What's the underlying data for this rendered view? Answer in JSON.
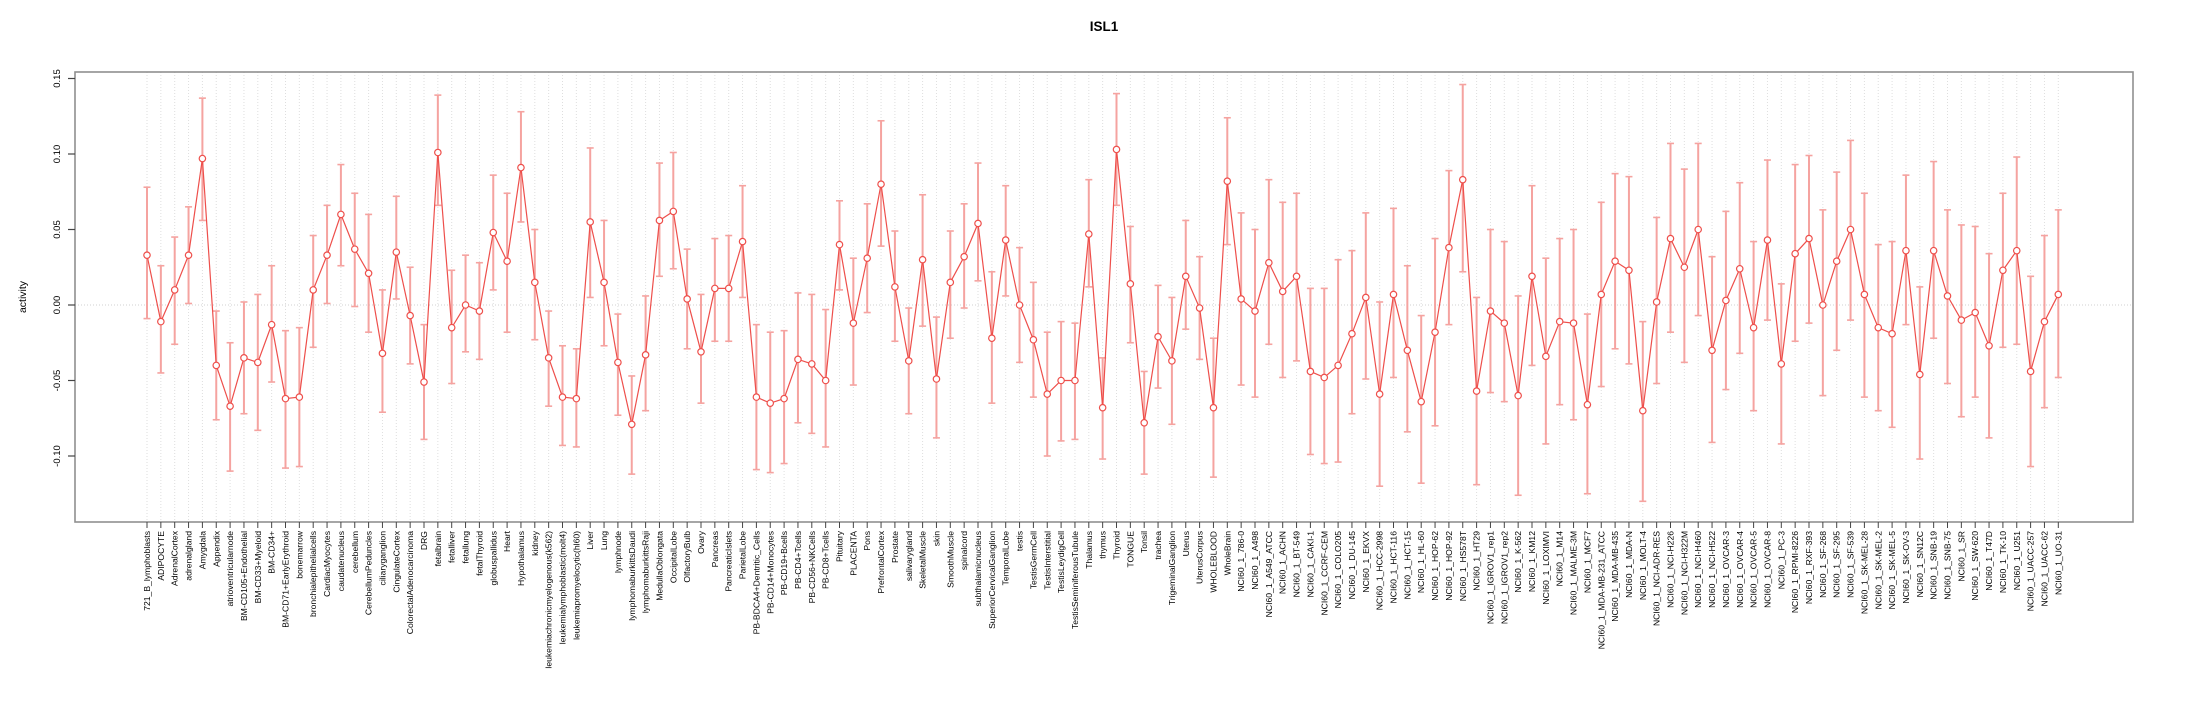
{
  "chart_data": {
    "type": "line",
    "title": "ISL1",
    "ylabel": "activity",
    "xlabel": "",
    "ylim": [
      -0.13,
      0.155
    ],
    "yticks": [
      "0.15",
      "0.10",
      "0.05",
      "0.00",
      "-0.05",
      "-0.10"
    ],
    "ytick_values": [
      0.15,
      0.1,
      0.05,
      0.0,
      -0.05,
      -0.1
    ],
    "grid": "vertical dotted gridline at every category; horizontal dotted line at y=0",
    "legend_position": "none",
    "marker": "open-circle",
    "error_bars": true,
    "colors": {
      "series": "#ee4f4b",
      "error_bar": "#f5a3a0",
      "grid": "#dedede",
      "zero_line": "#d0d0d0",
      "box": "#8f8f8f",
      "tick": "#444444",
      "text": "#000000",
      "background": "#ffffff"
    },
    "categories": [
      "721_B_lymphoblasts",
      "ADIPOCYTE",
      "AdrenalCortex",
      "adrenalgland",
      "Amygdala",
      "Appendix",
      "atrioventricularnode",
      "BM-CD105+Endothelial",
      "BM-CD33+Myeloid",
      "BM-CD34+",
      "BM-CD71+EarlyErythroid",
      "bonemarrow",
      "bronchialepithelialcells",
      "CardiacMyocytes",
      "caudatenucleus",
      "cerebellum",
      "CerebellumPeduncles",
      "ciliaryganglion",
      "CingulateCortex",
      "ColorectalAdenocarcinoma",
      "DRG",
      "fetalbrain",
      "fetalliver",
      "fetallung",
      "fetalThyroid",
      "globuspallidus",
      "Heart",
      "Hypothalamus",
      "kidney",
      "leukemiachronicmyelogenous(k562)",
      "leukemialymphoblastic(molt4)",
      "leukemiapromyelocytic(hl60)",
      "Liver",
      "Lung",
      "lymphnode",
      "lymphomaburkittsDaudi",
      "lymphomaburkittsRaji",
      "MedullaOblongata",
      "OccipitalLobe",
      "OlfactoryBulb",
      "Ovary",
      "Pancreas",
      "PancreaticIslets",
      "ParietalLobe",
      "PB-BDCA4+Dentritic_Cells",
      "PB-CD14+Monocytes",
      "PB-CD19+Bcells",
      "PB-CD4+Tcells",
      "PB-CD56+NKCells",
      "PB-CD8+Tcells",
      "Pituitary",
      "PLACENTA",
      "Pons",
      "PrefrontalCortex",
      "Prostate",
      "salivarygland",
      "SkeletalMuscle",
      "skin",
      "SmoothMuscle",
      "spinalcord",
      "subthalamicnucleus",
      "SuperiorCervicalGanglion",
      "TemporalLobe",
      "testis",
      "TestisGermCell",
      "TestisInterstitial",
      "TestisLeydigCell",
      "TestisSeminiferousTubule",
      "Thalamus",
      "thymus",
      "Thyroid",
      "TONGUE",
      "Tonsil",
      "trachea",
      "TrigeminalGanglion",
      "Uterus",
      "UterusCorpus",
      "WHOLEBLOOD",
      "WholeBrain",
      "NCI60_1_786-0",
      "NCI60_1_A498",
      "NCI60_1_A549_ATCC",
      "NCI60_1_ACHN",
      "NCI60_1_BT-549",
      "NCI60_1_CAKI-1",
      "NCI60_1_CCRF-CEM",
      "NCI60_1_COLO205",
      "NCI60_1_DU-145",
      "NCI60_1_EKVX",
      "NCI60_1_HCC-2998",
      "NCI60_1_HCT-116",
      "NCI60_1_HCT-15",
      "NCI60_1_HL-60",
      "NCI60_1_HOP-62",
      "NCI60_1_HOP-92",
      "NCI60_1_HS578T",
      "NCI60_1_HT29",
      "NCI60_1_IGROV1_rep1",
      "NCI60_1_IGROV1_rep2",
      "NCI60_1_K-562",
      "NCI60_1_KM12",
      "NCI60_1_LOXIMVI",
      "NCI60_1_M14",
      "NCI60_1_MALME-3M",
      "NCI60_1_MCF7",
      "NCI60_1_MDA-MB-231_ATCC",
      "NCI60_1_MDA-MB-435",
      "NCI60_1_MDA-N",
      "NCI60_1_MOLT-4",
      "NCI60_1_NCI-ADR-RES",
      "NCI60_1_NCI-H226",
      "NCI60_1_NCI-H322M",
      "NCI60_1_NCI-H460",
      "NCI60_1_NCI-H522",
      "NCI60_1_OVCAR-3",
      "NCI60_1_OVCAR-4",
      "NCI60_1_OVCAR-5",
      "NCI60_1_OVCAR-8",
      "NCI60_1_PC-3",
      "NCI60_1_RPMI-8226",
      "NCI60_1_RXF-393",
      "NCI60_1_SF-268",
      "NCI60_1_SF-295",
      "NCI60_1_SF-539",
      "NCI60_1_SK-MEL-28",
      "NCI60_1_SK-MEL-2",
      "NCI60_1_SK-MEL-5",
      "NCI60_1_SK-OV-3",
      "NCI60_1_SN12C",
      "NCI60_1_SNB-19",
      "NCI60_1_SNB-75",
      "NCI60_1_SR",
      "NCI60_1_SW-620",
      "NCI60_1_T47D",
      "NCI60_1_TK-10",
      "NCI60_1_U251",
      "NCI60_1_UACC-257",
      "NCI60_1_UACC-62",
      "NCI60_1_UO-31"
    ],
    "series": [
      {
        "name": "activity",
        "values": [
          0.033,
          -0.011,
          0.01,
          0.033,
          0.097,
          -0.04,
          -0.067,
          -0.035,
          -0.038,
          -0.013,
          -0.062,
          -0.061,
          0.01,
          0.033,
          0.06,
          0.037,
          0.021,
          -0.032,
          0.035,
          -0.007,
          -0.051,
          0.101,
          -0.015,
          0.0,
          -0.004,
          0.048,
          0.029,
          0.091,
          0.015,
          -0.035,
          -0.061,
          -0.062,
          0.055,
          0.015,
          -0.038,
          -0.079,
          -0.033,
          0.056,
          0.062,
          0.004,
          -0.031,
          0.011,
          0.011,
          0.042,
          -0.061,
          -0.065,
          -0.062,
          -0.036,
          -0.039,
          -0.05,
          0.04,
          -0.012,
          0.031,
          0.08,
          0.012,
          -0.037,
          0.03,
          -0.049,
          0.015,
          0.032,
          0.054,
          -0.022,
          0.043,
          0.0,
          -0.023,
          -0.059,
          -0.05,
          -0.05,
          0.047,
          -0.068,
          0.103,
          0.014,
          -0.078,
          -0.021,
          -0.037,
          0.019,
          -0.002,
          -0.068,
          0.082,
          0.004,
          -0.004,
          0.028,
          0.009,
          0.019,
          -0.044,
          -0.048,
          -0.04,
          -0.019,
          0.005,
          -0.059,
          0.007,
          -0.03,
          -0.064,
          -0.018,
          0.038,
          0.083,
          -0.057,
          -0.004,
          -0.012,
          -0.06,
          0.019,
          -0.034,
          -0.011,
          -0.012,
          -0.066,
          0.007,
          0.029,
          0.023,
          -0.07,
          0.002,
          0.044,
          0.025,
          0.05,
          -0.03,
          0.003,
          0.024,
          -0.015,
          0.043,
          -0.039,
          0.034,
          0.044,
          0.0,
          0.029,
          0.05,
          0.007,
          -0.015,
          -0.019,
          0.036,
          -0.046,
          0.036,
          0.006,
          -0.01,
          -0.005,
          -0.027,
          0.023,
          0.036,
          -0.044,
          -0.011,
          0.007
        ],
        "err_lo": [
          -0.009,
          -0.045,
          -0.026,
          0.001,
          0.056,
          -0.076,
          -0.11,
          -0.072,
          -0.083,
          -0.051,
          -0.108,
          -0.107,
          -0.028,
          0.001,
          0.026,
          -0.001,
          -0.018,
          -0.071,
          0.004,
          -0.039,
          -0.089,
          0.066,
          -0.052,
          -0.031,
          -0.036,
          0.01,
          -0.018,
          0.055,
          -0.023,
          -0.067,
          -0.093,
          -0.094,
          0.005,
          -0.027,
          -0.073,
          -0.112,
          -0.07,
          0.019,
          0.024,
          -0.029,
          -0.065,
          -0.024,
          -0.024,
          0.005,
          -0.109,
          -0.111,
          -0.105,
          -0.078,
          -0.085,
          -0.094,
          0.01,
          -0.053,
          -0.005,
          0.039,
          -0.024,
          -0.072,
          -0.014,
          -0.088,
          -0.022,
          -0.002,
          0.016,
          -0.065,
          0.006,
          -0.038,
          -0.061,
          -0.1,
          -0.09,
          -0.089,
          0.012,
          -0.102,
          0.066,
          -0.025,
          -0.112,
          -0.055,
          -0.079,
          -0.016,
          -0.036,
          -0.114,
          0.04,
          -0.053,
          -0.061,
          -0.026,
          -0.048,
          -0.037,
          -0.099,
          -0.105,
          -0.104,
          -0.072,
          -0.049,
          -0.12,
          -0.048,
          -0.084,
          -0.118,
          -0.08,
          -0.013,
          0.022,
          -0.119,
          -0.058,
          -0.064,
          -0.126,
          -0.04,
          -0.092,
          -0.066,
          -0.076,
          -0.125,
          -0.054,
          -0.029,
          -0.039,
          -0.13,
          -0.052,
          -0.018,
          -0.038,
          -0.007,
          -0.091,
          -0.056,
          -0.032,
          -0.07,
          -0.01,
          -0.092,
          -0.024,
          -0.012,
          -0.06,
          -0.03,
          -0.01,
          -0.061,
          -0.07,
          -0.081,
          -0.013,
          -0.102,
          -0.022,
          -0.052,
          -0.074,
          -0.061,
          -0.088,
          -0.028,
          -0.026,
          -0.107,
          -0.068,
          -0.048
        ],
        "err_hi": [
          0.078,
          0.026,
          0.045,
          0.065,
          0.137,
          -0.004,
          -0.025,
          0.002,
          0.007,
          0.026,
          -0.017,
          -0.015,
          0.046,
          0.066,
          0.093,
          0.074,
          0.06,
          0.01,
          0.072,
          0.025,
          -0.013,
          0.139,
          0.023,
          0.033,
          0.028,
          0.086,
          0.074,
          0.128,
          0.05,
          -0.004,
          -0.027,
          -0.029,
          0.104,
          0.056,
          -0.006,
          -0.047,
          0.006,
          0.094,
          0.101,
          0.037,
          0.007,
          0.044,
          0.046,
          0.079,
          -0.013,
          -0.018,
          -0.017,
          0.008,
          0.007,
          -0.003,
          0.069,
          0.031,
          0.067,
          0.122,
          0.049,
          -0.002,
          0.073,
          -0.008,
          0.049,
          0.067,
          0.094,
          0.022,
          0.079,
          0.038,
          0.015,
          -0.018,
          -0.011,
          -0.012,
          0.083,
          -0.035,
          0.14,
          0.052,
          -0.044,
          0.013,
          0.005,
          0.056,
          0.032,
          -0.022,
          0.124,
          0.061,
          0.05,
          0.083,
          0.068,
          0.074,
          0.011,
          0.011,
          0.03,
          0.036,
          0.061,
          0.002,
          0.064,
          0.026,
          -0.007,
          0.044,
          0.089,
          0.146,
          0.005,
          0.05,
          0.042,
          0.006,
          0.079,
          0.031,
          0.044,
          0.05,
          -0.006,
          0.068,
          0.087,
          0.085,
          -0.011,
          0.058,
          0.107,
          0.09,
          0.107,
          0.032,
          0.062,
          0.081,
          0.042,
          0.096,
          0.014,
          0.093,
          0.099,
          0.063,
          0.088,
          0.109,
          0.074,
          0.04,
          0.042,
          0.086,
          0.012,
          0.095,
          0.063,
          0.053,
          0.052,
          0.034,
          0.074,
          0.098,
          0.019,
          0.046,
          0.063
        ]
      }
    ]
  }
}
